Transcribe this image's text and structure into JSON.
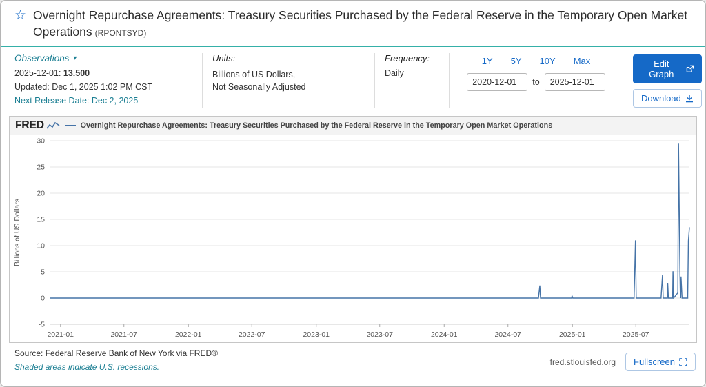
{
  "header": {
    "title": "Overnight Repurchase Agreements: Treasury Securities Purchased by the Federal Reserve in the Temporary Open Market Operations",
    "series_id": "(RPONTSYD)"
  },
  "info": {
    "observations": {
      "label": "Observations",
      "date": "2025-12-01:",
      "value": "13.500",
      "updated": "Updated: Dec 1, 2025 1:02 PM CST",
      "next_release": "Next Release Date: Dec 2, 2025"
    },
    "units": {
      "label": "Units:",
      "line1": "Billions of US Dollars,",
      "line2": "Not Seasonally Adjusted"
    },
    "frequency": {
      "label": "Frequency:",
      "value": "Daily"
    },
    "ranges": [
      "1Y",
      "5Y",
      "10Y",
      "Max"
    ],
    "date_from": "2020-12-01",
    "to_label": "to",
    "date_to": "2025-12-01",
    "edit_graph_label": "Edit Graph",
    "download_label": "Download"
  },
  "chart": {
    "brand": "FRED",
    "legend_title": "Overnight Repurchase Agreements: Treasury Securities Purchased by the Federal Reserve in the Temporary Open Market Operations"
  },
  "chart_data": {
    "type": "line",
    "title": "Overnight Repurchase Agreements: Treasury Securities Purchased by the Federal Reserve in the Temporary Open Market Operations",
    "ylabel": "Billions of US Dollars",
    "x_start": "2020-12-01",
    "x_end": "2025-12-01",
    "ylim": [
      -5,
      30
    ],
    "y_ticks": [
      30,
      25,
      20,
      15,
      10,
      5,
      0,
      -5
    ],
    "x_ticks": [
      {
        "date": "2021-01-01",
        "label": "2021-01"
      },
      {
        "date": "2021-07-01",
        "label": "2021-07"
      },
      {
        "date": "2022-01-01",
        "label": "2022-01"
      },
      {
        "date": "2022-07-01",
        "label": "2022-07"
      },
      {
        "date": "2023-01-01",
        "label": "2023-01"
      },
      {
        "date": "2023-07-01",
        "label": "2023-07"
      },
      {
        "date": "2024-01-01",
        "label": "2024-01"
      },
      {
        "date": "2024-07-01",
        "label": "2024-07"
      },
      {
        "date": "2025-01-01",
        "label": "2025-01"
      },
      {
        "date": "2025-07-01",
        "label": "2025-07"
      }
    ],
    "grid": true,
    "legend_position": "top",
    "line_color": "#4573a7",
    "points": [
      [
        "2020-12-01",
        0.0
      ],
      [
        "2024-09-26",
        0.0
      ],
      [
        "2024-09-30",
        2.4
      ],
      [
        "2024-10-02",
        0.0
      ],
      [
        "2024-12-30",
        0.0
      ],
      [
        "2024-12-31",
        0.45
      ],
      [
        "2025-01-02",
        0.0
      ],
      [
        "2025-06-26",
        0.0
      ],
      [
        "2025-06-30",
        11.0
      ],
      [
        "2025-07-02",
        0.0
      ],
      [
        "2025-09-11",
        0.0
      ],
      [
        "2025-09-15",
        4.4
      ],
      [
        "2025-09-17",
        0.0
      ],
      [
        "2025-09-29",
        0.0
      ],
      [
        "2025-09-30",
        2.9
      ],
      [
        "2025-10-02",
        0.0
      ],
      [
        "2025-10-14",
        0.0
      ],
      [
        "2025-10-15",
        5.1
      ],
      [
        "2025-10-17",
        0.0
      ],
      [
        "2025-10-29",
        1.0
      ],
      [
        "2025-10-31",
        29.45
      ],
      [
        "2025-11-04",
        3.9
      ],
      [
        "2025-11-05",
        0.3
      ],
      [
        "2025-11-06",
        0.0
      ],
      [
        "2025-11-07",
        4.1
      ],
      [
        "2025-11-10",
        0.0
      ],
      [
        "2025-11-26",
        0.0
      ],
      [
        "2025-11-28",
        10.9
      ],
      [
        "2025-12-01",
        13.5
      ]
    ]
  },
  "footer": {
    "source": "Source: Federal Reserve Bank of New York via FRED®",
    "recessions": "Shaded areas indicate U.S. recessions.",
    "site": "fred.stlouisfed.org",
    "fullscreen_label": "Fullscreen"
  },
  "colors": {
    "accent_blue": "#1569c7",
    "teal_link": "#1c7f93",
    "teal_rule": "#35b0a8",
    "series_line": "#4573a7"
  }
}
